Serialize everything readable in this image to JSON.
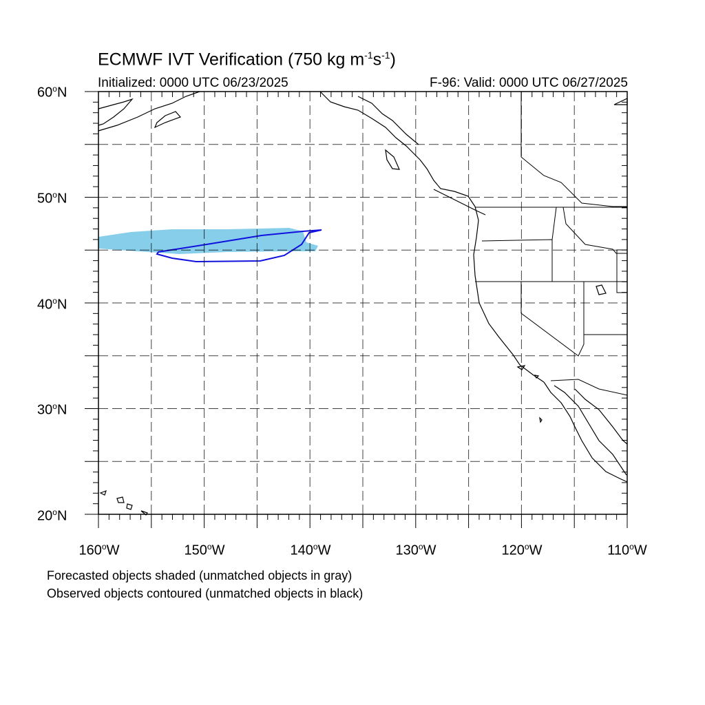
{
  "title": {
    "main": "ECMWF IVT Verification (750 kg m",
    "exp1": "-1",
    "mid": "s",
    "exp2": "-1",
    "end": ")"
  },
  "initialized": "Initialized: 0000 UTC 06/23/2025",
  "valid": "F-96: Valid: 0000 UTC 06/27/2025",
  "lat_labels": [
    "60",
    "50",
    "40",
    "30",
    "20"
  ],
  "lat_suffix": "N",
  "lon_labels": [
    "160",
    "150",
    "140",
    "130",
    "120",
    "110"
  ],
  "lon_suffix": "W",
  "footnote_1": "Forecasted objects shaded (unmatched objects in gray)",
  "footnote_2": "Observed objects contoured (unmatched objects in black)",
  "map": {
    "lon_range": [
      -160,
      -110
    ],
    "lat_range": [
      20,
      60
    ],
    "grid_lons": [
      -155,
      -150,
      -145,
      -140,
      -135,
      -130,
      -125,
      -120,
      -115
    ],
    "grid_lats": [
      25,
      30,
      35,
      40,
      45,
      50,
      55
    ],
    "forecast_fill_color": "#87ceeb",
    "observed_contour_color": "#1111dd"
  }
}
